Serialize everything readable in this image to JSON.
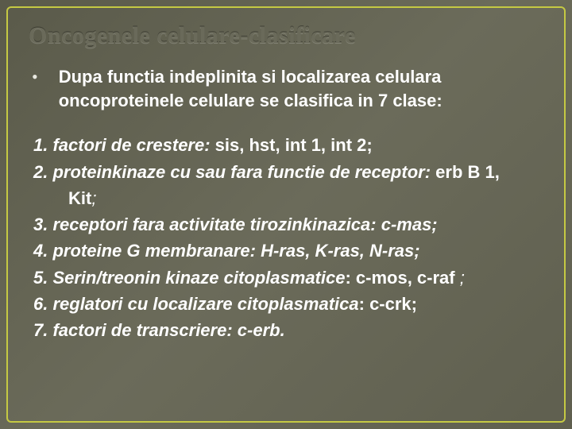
{
  "title": {
    "text": "Oncogenele celulare-clasificare",
    "fontsize": 30
  },
  "intro": {
    "bullet": "•",
    "text": "Dupa functia indeplinita si localizarea celulara oncoproteinele celulare se clasifica in 7 clase:",
    "fontsize": 22,
    "fontweight": 700
  },
  "list": {
    "fontsize": 22,
    "items": [
      {
        "lead": " 1. factori de crestere:  ",
        "lead_style": "bolditalic",
        "tail": "sis, hst, int 1, int 2;",
        "tail_style": "bold"
      },
      {
        "lead": "2. proteinkinaze cu sau fara functie de receptor: ",
        "lead_style": "bolditalic",
        "tail": "erb B 1,",
        "tail_style": "bold",
        "continuation": "Kit",
        "continuation_style": "bold",
        "continuation_tail": ";",
        "continuation_tail_style": "italic"
      },
      {
        "lead": "3. receptori fara activitate tirozinkinazica: c-mas;",
        "lead_style": "bolditalic",
        "tail": "",
        "tail_style": "bold"
      },
      {
        "lead": "4. proteine G membranare: H-ras, K-ras, N-ras;",
        "lead_style": "bolditalic",
        "tail": "",
        "tail_style": "bold"
      },
      {
        "lead": "5. Serin/treonin kinaze citoplasmatice",
        "lead_style": "bolditalic",
        "tail": ": c-mos, c-raf ",
        "tail_style": "bold",
        "tail2": ";",
        "tail2_style": "italic"
      },
      {
        "lead": "6. reglatori cu localizare citoplasmatica",
        "lead_style": "bolditalic",
        "tail": ": c-crk;",
        "tail_style": "bold"
      },
      {
        "lead": "7. factori de transcriere: c-erb.",
        "lead_style": "bolditalic",
        "tail": "",
        "tail_style": "bold"
      }
    ]
  },
  "colors": {
    "background_from": "#5a5a4a",
    "background_to": "#5f5f4f",
    "border": "#c5c943",
    "title_color": "#6a6a5a",
    "text_color": "#ffffff"
  }
}
